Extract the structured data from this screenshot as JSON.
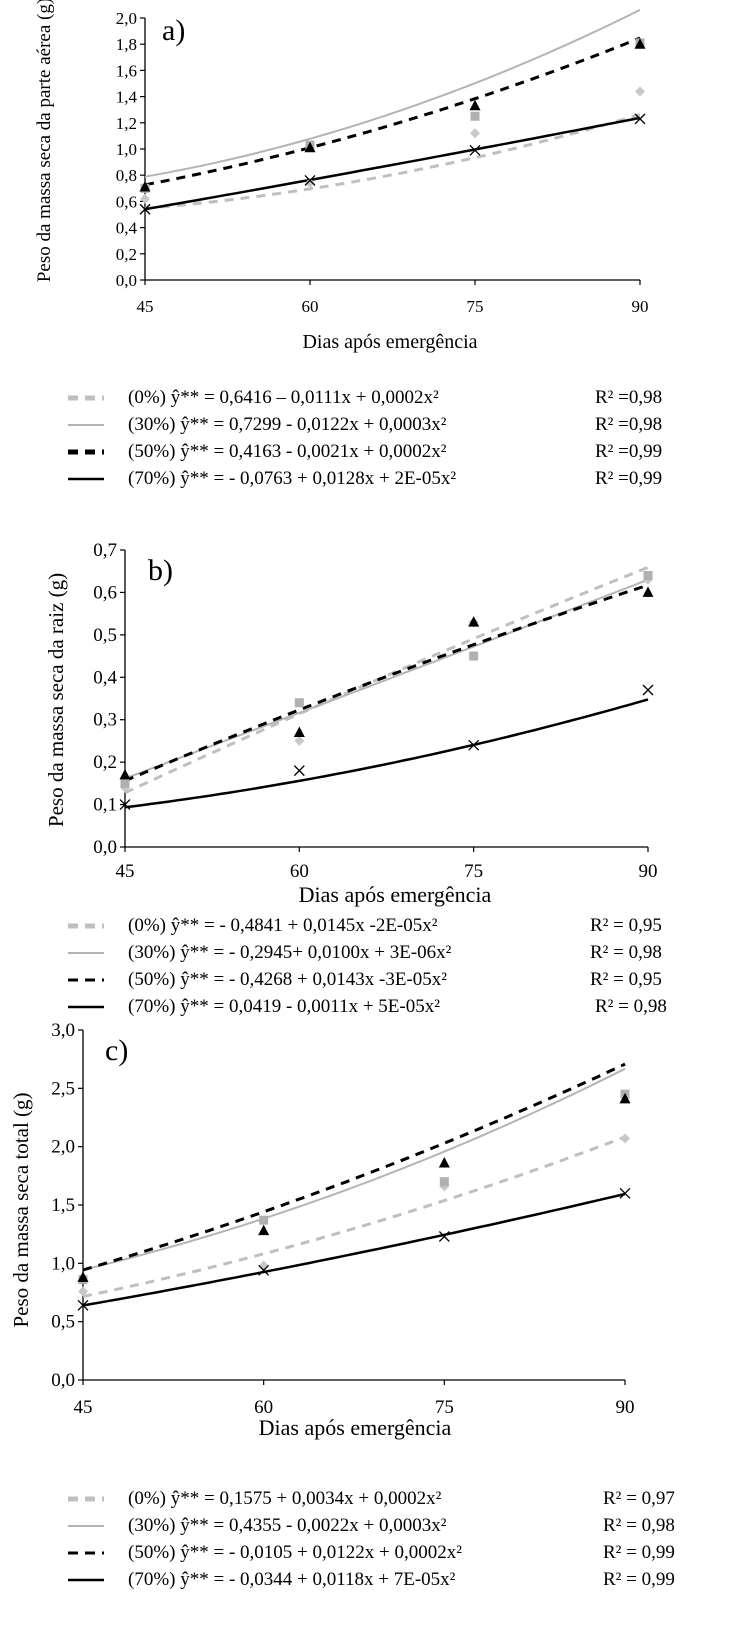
{
  "colors": {
    "s0": "#bfbfbf",
    "s30": "#b4b4b4",
    "s50": "#000000",
    "s70": "#000000",
    "axis": "#000000"
  },
  "chart_data": [
    {
      "type": "scatter",
      "panel_label": "a)",
      "title": "",
      "xlabel": "Dias após emergência",
      "ylabel": "Peso da massa seca da parte aérea (g)",
      "x": [
        45,
        60,
        75,
        90
      ],
      "xticks": [
        "45",
        "60",
        "75",
        "90"
      ],
      "ylim": [
        0,
        2.0
      ],
      "yticks": [
        "0,0",
        "0,2",
        "0,4",
        "0,6",
        "0,8",
        "1,0",
        "1,2",
        "1,4",
        "1,6",
        "1,8",
        "2,0"
      ],
      "ytick_values": [
        0,
        0.2,
        0.4,
        0.6,
        0.8,
        1.0,
        1.2,
        1.4,
        1.6,
        1.8,
        2.0
      ],
      "series": [
        {
          "key": "s0",
          "name": "(0%)",
          "marker": "diamond",
          "line": "dash-gray",
          "values": [
            0.62,
            0.74,
            1.12,
            1.44
          ],
          "coef": [
            0.6416,
            -0.0111,
            0.0002
          ]
        },
        {
          "key": "s30",
          "name": "(30%)",
          "marker": "square",
          "line": "solid-gray",
          "values": [
            0.7,
            1.03,
            1.25,
            1.81
          ],
          "coef": [
            0.7299,
            -0.0122,
            0.0003
          ]
        },
        {
          "key": "s50",
          "name": "(50%)",
          "marker": "triangle",
          "line": "dash-black",
          "values": [
            0.71,
            1.01,
            1.33,
            1.8
          ],
          "coef": [
            0.4163,
            -0.0021,
            0.0002
          ]
        },
        {
          "key": "s70",
          "name": "(70%)",
          "marker": "cross",
          "line": "solid-black",
          "values": [
            0.54,
            0.76,
            0.99,
            1.23
          ],
          "coef": [
            -0.0763,
            0.0128,
            2e-05
          ]
        }
      ],
      "legend": [
        {
          "label": "(0%) ŷ** = 0,6416 – 0,0111x + 0,0002x²",
          "r2": "R² =0,98"
        },
        {
          "label": "(30%) ŷ** = 0,7299 - 0,0122x + 0,0003x²",
          "r2": "R² =0,98"
        },
        {
          "label": "(50%) ŷ** = 0,4163 - 0,0021x  + 0,0002x²",
          "r2": "R² =0,99"
        },
        {
          "label": "(70%) ŷ** =  - 0,0763 + 0,0128x + 2E-05x²",
          "r2": "R² =0,99"
        }
      ]
    },
    {
      "type": "scatter",
      "panel_label": "b)",
      "title": "",
      "xlabel": "Dias após emergência",
      "ylabel": "Peso da massa seca da raiz (g)",
      "x": [
        45,
        60,
        75,
        90
      ],
      "xticks": [
        "45",
        "60",
        "75",
        "90"
      ],
      "ylim": [
        0,
        0.7
      ],
      "yticks": [
        "0,0",
        "0,1",
        "0,2",
        "0,3",
        "0,4",
        "0,5",
        "0,6",
        "0,7"
      ],
      "ytick_values": [
        0,
        0.1,
        0.2,
        0.3,
        0.4,
        0.5,
        0.6,
        0.7
      ],
      "series": [
        {
          "key": "s0",
          "name": "(0%)",
          "marker": "diamond",
          "line": "dash-gray",
          "values": [
            0.14,
            0.25,
            0.53,
            0.63
          ],
          "coef": [
            -0.4841,
            0.0145,
            -2e-05
          ]
        },
        {
          "key": "s30",
          "name": "(30%)",
          "marker": "square",
          "line": "solid-gray",
          "values": [
            0.15,
            0.34,
            0.45,
            0.64
          ],
          "coef": [
            -0.2945,
            0.01,
            3e-06
          ]
        },
        {
          "key": "s50",
          "name": "(50%)",
          "marker": "triangle",
          "line": "dash-black",
          "values": [
            0.17,
            0.27,
            0.53,
            0.6
          ],
          "coef": [
            -0.4268,
            0.0143,
            -3e-05
          ]
        },
        {
          "key": "s70",
          "name": "(70%)",
          "marker": "cross",
          "line": "solid-black",
          "values": [
            0.1,
            0.18,
            0.24,
            0.37
          ],
          "coef": [
            0.0419,
            -0.0011,
            5e-05
          ]
        }
      ],
      "legend": [
        {
          "label": "(0%)   ŷ** = - 0,4841 + 0,0145x -2E-05x²",
          "r2": "R²  = 0,95"
        },
        {
          "label": "(30%) ŷ** = - 0,2945+ 0,0100x + 3E-06x²",
          "r2": "R² = 0,98"
        },
        {
          "label": "(50%) ŷ** = - 0,4268 + 0,0143x -3E-05x²",
          "r2": "R² = 0,95"
        },
        {
          "label": "(70%) ŷ** = 0,0419 - 0,0011x + 5E-05x²",
          "r2": "R² = 0,98"
        }
      ]
    },
    {
      "type": "scatter",
      "panel_label": "c)",
      "title": "",
      "xlabel": "Dias após emergência",
      "ylabel": "Peso da massa seca total (g)",
      "x": [
        45,
        60,
        75,
        90
      ],
      "xticks": [
        "45",
        "60",
        "75",
        "90"
      ],
      "ylim": [
        0,
        3.0
      ],
      "yticks": [
        "0,0",
        "0,5",
        "1,0",
        "1,5",
        "2,0",
        "2,5",
        "3,0"
      ],
      "ytick_values": [
        0,
        0.5,
        1.0,
        1.5,
        2.0,
        2.5,
        3.0
      ],
      "series": [
        {
          "key": "s0",
          "name": "(0%)",
          "marker": "diamond",
          "line": "dash-gray",
          "values": [
            0.76,
            0.98,
            1.66,
            2.07
          ],
          "coef": [
            0.1575,
            0.0034,
            0.0002
          ]
        },
        {
          "key": "s30",
          "name": "(30%)",
          "marker": "square",
          "line": "solid-gray",
          "values": [
            0.86,
            1.37,
            1.7,
            2.45
          ],
          "coef": [
            0.4355,
            -0.0022,
            0.0003
          ]
        },
        {
          "key": "s50",
          "name": "(50%)",
          "marker": "triangle",
          "line": "dash-black",
          "values": [
            0.88,
            1.28,
            1.86,
            2.41
          ],
          "coef": [
            -0.0105,
            0.0122,
            0.0002
          ]
        },
        {
          "key": "s70",
          "name": "(70%)",
          "marker": "cross",
          "line": "solid-black",
          "values": [
            0.64,
            0.94,
            1.23,
            1.6
          ],
          "coef": [
            -0.0344,
            0.0118,
            7e-05
          ]
        }
      ],
      "legend": [
        {
          "label": "(0%)  ŷ** = 0,1575 + 0,0034x + 0,0002x²",
          "r2": "R² = 0,97"
        },
        {
          "label": "(30%)  ŷ** = 0,4355 - 0,0022x + 0,0003x²",
          "r2": "R² = 0,98"
        },
        {
          "label": "(50%)  ŷ** = - 0,0105 + 0,0122x + 0,0002x²",
          "r2": "R² = 0,99"
        },
        {
          "label": "(70%)  ŷ** = - 0,0344 + 0,0118x + 7E-05x²",
          "r2": "R² = 0,99"
        }
      ]
    }
  ]
}
